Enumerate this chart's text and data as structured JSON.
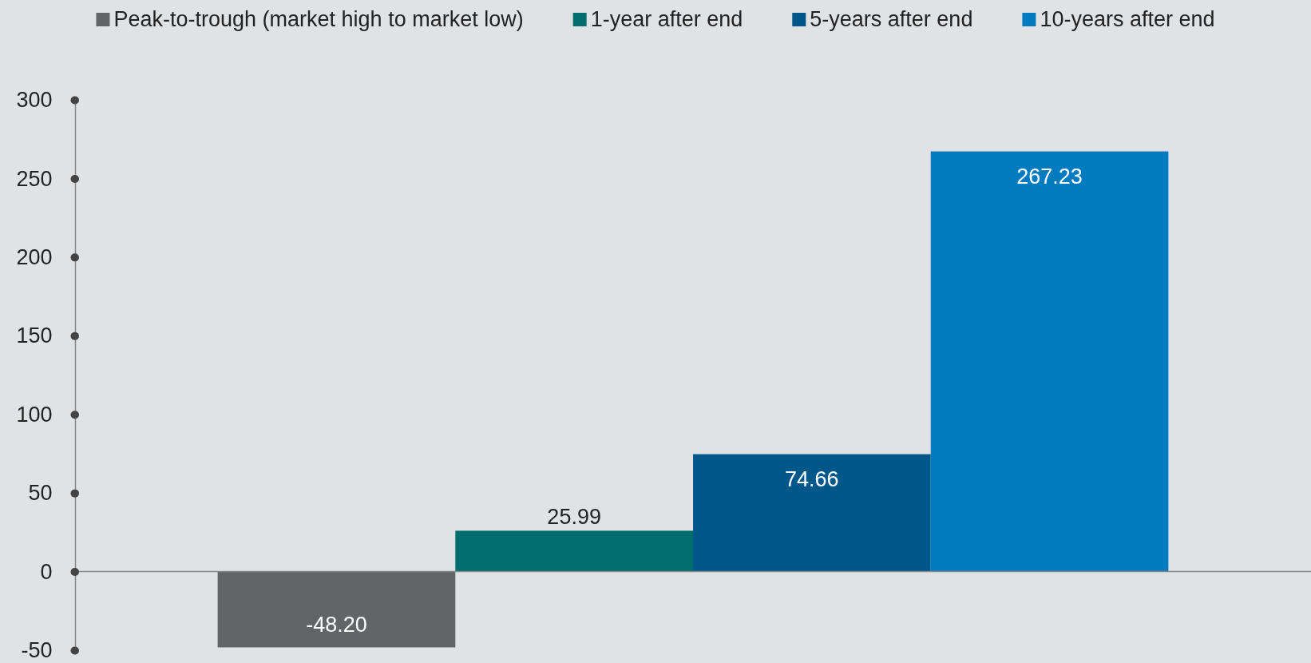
{
  "chart_data": {
    "type": "bar",
    "categories": [
      null
    ],
    "series": [
      {
        "name": "Peak-to-trough (market high to market low)",
        "color": "#636466",
        "values": [
          -48.2
        ],
        "value_labels": [
          "-48.20"
        ]
      },
      {
        "name": "1-year after end",
        "color": "#006e6e",
        "values": [
          25.99
        ],
        "value_labels": [
          "25.99"
        ]
      },
      {
        "name": "5-years after end",
        "color": "#00578a",
        "values": [
          74.66
        ],
        "value_labels": [
          "74.66"
        ]
      },
      {
        "name": "10-years after end",
        "color": "#007bbf",
        "values": [
          267.23
        ],
        "value_labels": [
          "267.23"
        ]
      }
    ],
    "ylim": [
      -50,
      300
    ],
    "yticks": [
      -50,
      0,
      50,
      100,
      150,
      200,
      250,
      300
    ],
    "legend": "top"
  }
}
